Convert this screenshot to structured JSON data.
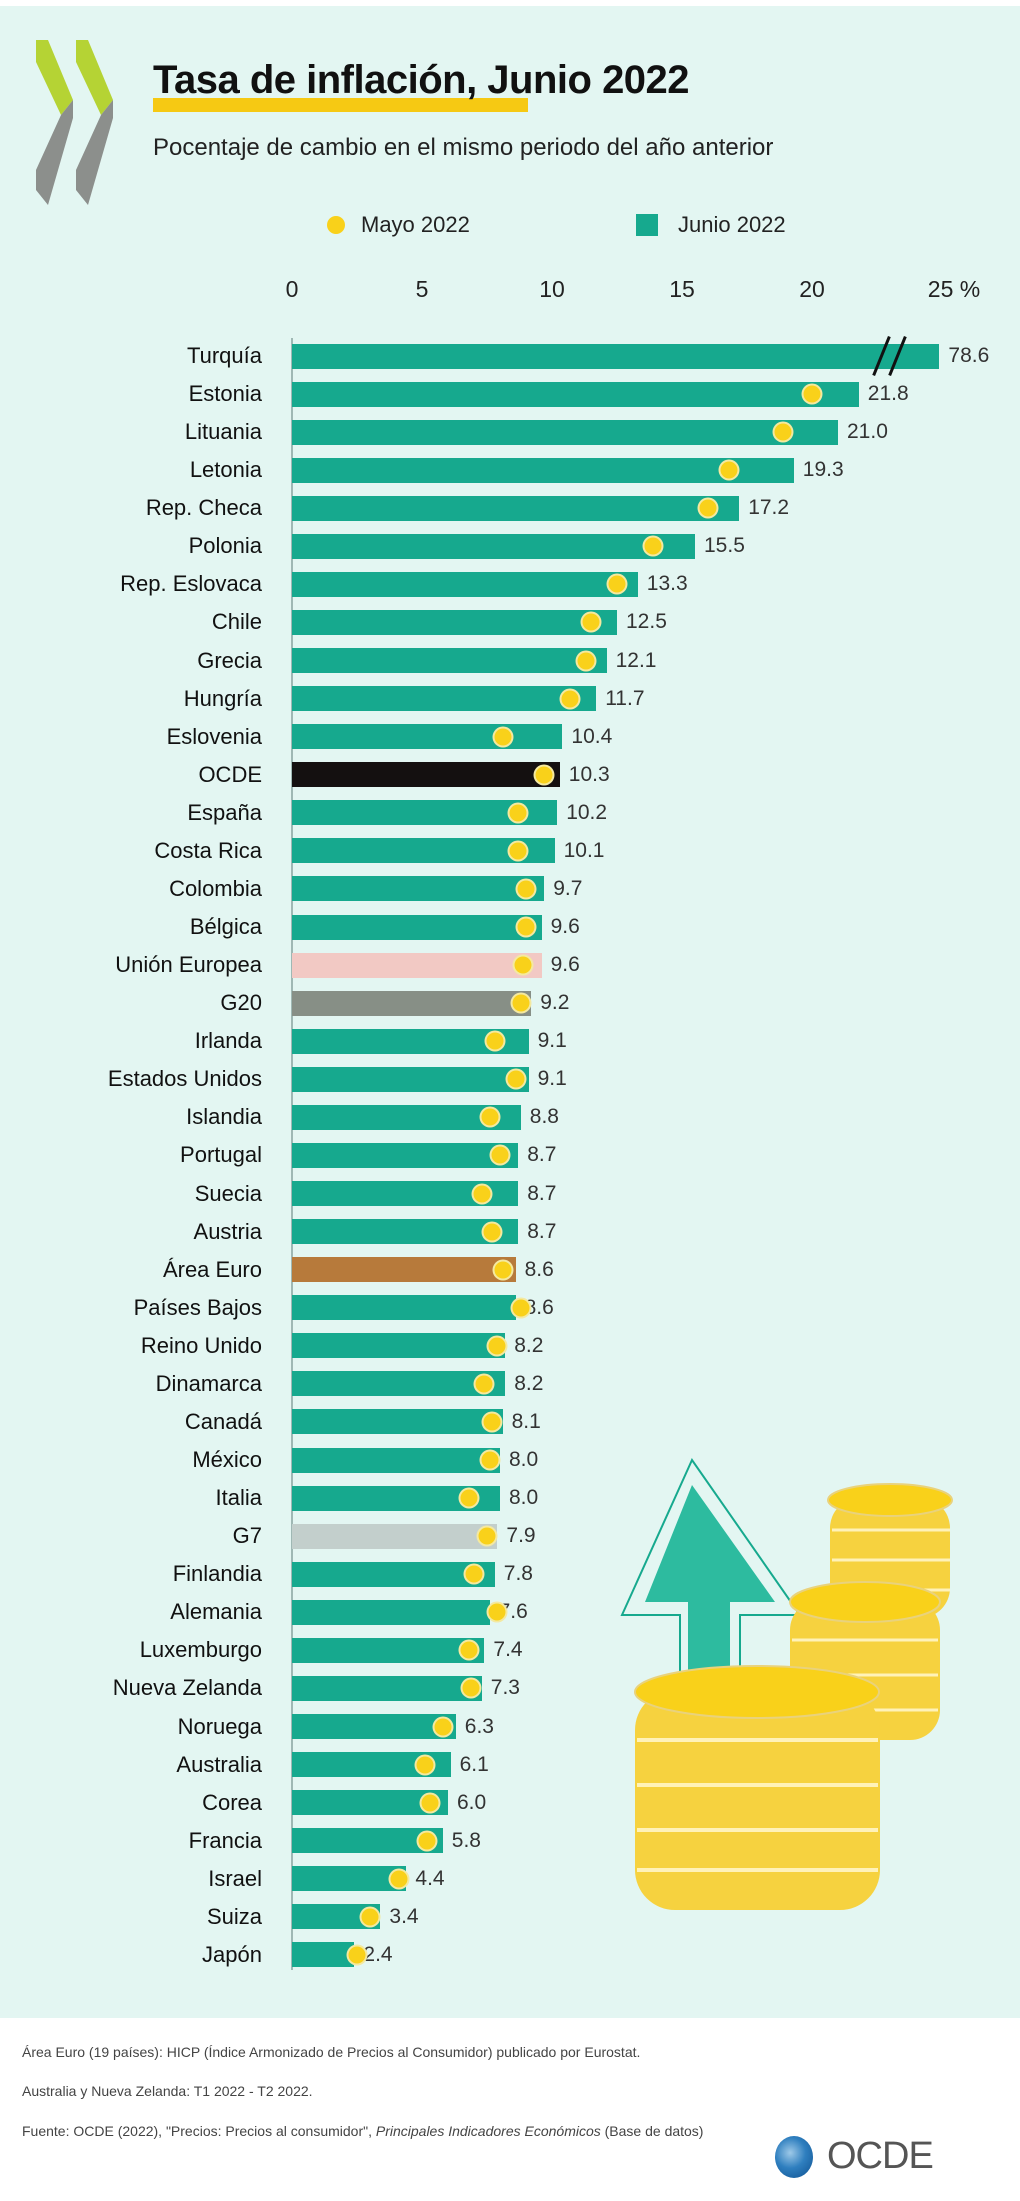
{
  "header": {
    "title": "Tasa de inflación, Junio 2022",
    "subtitle": "Pocentaje de cambio en el mismo periodo del año anterior"
  },
  "legend": {
    "may_label": "Mayo 2022",
    "june_label": "Junio 2022"
  },
  "colors": {
    "june_bar": "#16a98e",
    "may_dot": "#f9d11a",
    "ocde_bar": "#141010",
    "eu_bar": "#f2c9c4",
    "g20_bar": "#878f86",
    "euro_area_bar": "#b77a3b",
    "g7_bar": "#c3cfcc",
    "background": "#e3f6f2"
  },
  "chart_data": {
    "type": "bar",
    "orientation": "horizontal",
    "title": "Tasa de inflación, Junio 2022",
    "subtitle": "Pocentaje de cambio en el mismo periodo del año anterior",
    "xlabel": "%",
    "xlim": [
      0,
      25
    ],
    "x_ticks": [
      "0",
      "5",
      "10",
      "15",
      "20",
      "25"
    ],
    "x_unit": "%",
    "legend_position": "top",
    "axis_break": {
      "category": "Turquía",
      "note": "bar truncated with break marks"
    },
    "categories": [
      "Turquía",
      "Estonia",
      "Lituania",
      "Letonia",
      "Rep. Checa",
      "Polonia",
      "Rep. Eslovaca",
      "Chile",
      "Grecia",
      "Hungría",
      "Eslovenia",
      "OCDE",
      "España",
      "Costa Rica",
      "Colombia",
      "Bélgica",
      "Unión Europea",
      "G20",
      "Irlanda",
      "Estados Unidos",
      "Islandia",
      "Portugal",
      "Suecia",
      "Austria",
      "Área Euro",
      "Países Bajos",
      "Reino Unido",
      "Dinamarca",
      "Canadá",
      "México",
      "Italia",
      "G7",
      "Finlandia",
      "Alemania",
      "Luxemburgo",
      "Nueva Zelanda",
      "Noruega",
      "Australia",
      "Corea",
      "Francia",
      "Israel",
      "Suiza",
      "Japón"
    ],
    "series": [
      {
        "name": "Junio 2022",
        "type": "bar",
        "values": [
          78.6,
          21.8,
          21.0,
          19.3,
          17.2,
          15.5,
          13.3,
          12.5,
          12.1,
          11.7,
          10.4,
          10.3,
          10.2,
          10.1,
          9.7,
          9.6,
          9.6,
          9.2,
          9.1,
          9.1,
          8.8,
          8.7,
          8.7,
          8.7,
          8.6,
          8.6,
          8.2,
          8.2,
          8.1,
          8.0,
          8.0,
          7.9,
          7.8,
          7.6,
          7.4,
          7.3,
          6.3,
          6.1,
          6.0,
          5.8,
          4.4,
          3.4,
          2.4
        ],
        "labels": [
          "78.6",
          "21.8",
          "21.0",
          "19.3",
          "17.2",
          "15.5",
          "13.3",
          "12.5",
          "12.1",
          "11.7",
          "10.4",
          "10.3",
          "10.2",
          "10.1",
          "9.7",
          "9.6",
          "9.6",
          "9.2",
          "9.1",
          "9.1",
          "8.8",
          "8.7",
          "8.7",
          "8.7",
          "8.6",
          "8.6",
          "8.2",
          "8.2",
          "8.1",
          "8.0",
          "8.0",
          "7.9",
          "7.8",
          "7.6",
          "7.4",
          "7.3",
          "6.3",
          "6.1",
          "6.0",
          "5.8",
          "4.4",
          "3.4",
          "2.4"
        ]
      },
      {
        "name": "Mayo 2022",
        "type": "dot",
        "values": [
          null,
          20.0,
          18.9,
          16.8,
          16.0,
          13.9,
          12.5,
          11.5,
          11.3,
          10.7,
          8.1,
          9.7,
          8.7,
          8.7,
          9.0,
          9.0,
          8.9,
          8.8,
          7.8,
          8.6,
          7.6,
          8.0,
          7.3,
          7.7,
          8.1,
          8.8,
          7.9,
          7.4,
          7.7,
          7.6,
          6.8,
          7.5,
          7.0,
          7.9,
          6.8,
          6.9,
          5.8,
          5.1,
          5.3,
          5.2,
          4.1,
          3.0,
          2.5
        ]
      }
    ],
    "highlight": {
      "OCDE": "ocde_bar",
      "Unión Europea": "eu_bar",
      "G20": "g20_bar",
      "Área Euro": "euro_area_bar",
      "G7": "g7_bar"
    }
  },
  "footnotes": {
    "note1": "Área Euro (19 países): HICP (Índice Armonizado de Precios al Consumidor) publicado por Eurostat.",
    "note2": "Australia y Nueva Zelanda: T1 2022 - T2 2022.",
    "source_prefix": "Fuente: OCDE (2022), \"Precios: Precios al consumidor\", ",
    "source_italic": "Principales Indicadores Económicos",
    "source_suffix": "  (Base de datos)"
  },
  "brand": {
    "logo_text": "OCDE"
  }
}
